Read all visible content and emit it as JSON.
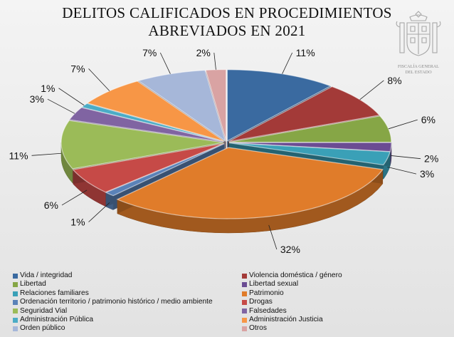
{
  "title_lines": [
    "DELITOS CALIFICADOS EN PROCEDIMIENTOS",
    "ABREVIADOS EN 2021"
  ],
  "logo": {
    "text_line1": "FISCALÍA GENERAL",
    "text_line2": "DEL ESTADO"
  },
  "chart_data": {
    "type": "pie",
    "title": "DELITOS CALIFICADOS EN PROCEDIMIENTOS ABREVIADOS EN 2021",
    "legend_position": "bottom",
    "slices": [
      {
        "name": "Vida / integridad",
        "value": 11,
        "label": "11%",
        "color": "#3a6aa0"
      },
      {
        "name": "Violencia doméstica / género",
        "value": 8,
        "label": "8%",
        "color": "#a33a38"
      },
      {
        "name": "Libertad",
        "value": 6,
        "label": "6%",
        "color": "#86a646"
      },
      {
        "name": "Libertad sexual",
        "value": 2,
        "label": "2%",
        "color": "#6b4c93"
      },
      {
        "name": "Relaciones familiares",
        "value": 3,
        "label": "3%",
        "color": "#3aa0b7"
      },
      {
        "name": "Patrimonio",
        "value": 32,
        "label": "32%",
        "color": "#e07c2a"
      },
      {
        "name": "Ordenación territorio / patrimonio histórico / medio ambiente",
        "value": 1,
        "label": "1%",
        "color": "#5a82b8"
      },
      {
        "name": "Drogas",
        "value": 6,
        "label": "6%",
        "color": "#c64a47"
      },
      {
        "name": "Seguridad Vial",
        "value": 11,
        "label": "11%",
        "color": "#9bbb58"
      },
      {
        "name": "Falsedades",
        "value": 3,
        "label": "3%",
        "color": "#8064a2"
      },
      {
        "name": "Administración Pública",
        "value": 1,
        "label": "1%",
        "color": "#4bacc6"
      },
      {
        "name": "Administración Justicia",
        "value": 7,
        "label": "7%",
        "color": "#f79646"
      },
      {
        "name": "Orden público",
        "value": 7,
        "label": "7%",
        "color": "#a6b7d9"
      },
      {
        "name": "Otros",
        "value": 2,
        "label": "2%",
        "color": "#d9a3a3"
      }
    ]
  }
}
